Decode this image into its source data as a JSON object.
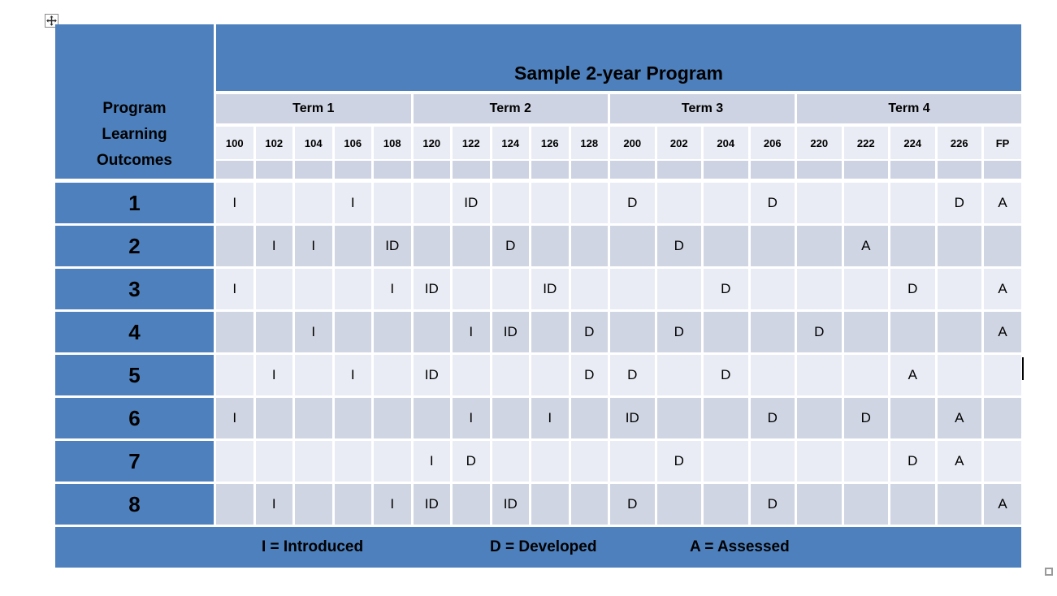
{
  "page": {
    "background": "#FFFFFF",
    "artifacts": {
      "move_handle": "table-move-handle",
      "resize_handle": "table-resize-handle",
      "text_cursor": "caret"
    }
  },
  "colors": {
    "header_blue": "#4D80BC",
    "band_lavender": "#CDD3E2",
    "row_light": "#E9ECF4",
    "row_dark": "#D0D5E3",
    "text": "#000000"
  },
  "table": {
    "corner_header": "Program\nLearning\nOutcomes",
    "title": "Sample 2-year Program",
    "terms": [
      {
        "label": "Term 1",
        "courses": [
          "100",
          "102",
          "104",
          "106",
          "108"
        ]
      },
      {
        "label": "Term 2",
        "courses": [
          "120",
          "122",
          "124",
          "126",
          "128"
        ]
      },
      {
        "label": "Term 3",
        "courses": [
          "200",
          "202",
          "204",
          "206"
        ]
      },
      {
        "label": "Term 4",
        "courses": [
          "220",
          "222",
          "224",
          "226",
          "FP"
        ]
      }
    ],
    "courses": [
      "100",
      "102",
      "104",
      "106",
      "108",
      "120",
      "122",
      "124",
      "126",
      "128",
      "200",
      "202",
      "204",
      "206",
      "220",
      "222",
      "224",
      "226",
      "FP"
    ],
    "rows": [
      {
        "outcome": "1",
        "cells": [
          "I",
          "",
          "",
          "I",
          "",
          "",
          "ID",
          "",
          "",
          "",
          "D",
          "",
          "",
          "D",
          "",
          "",
          "",
          "D",
          "A"
        ]
      },
      {
        "outcome": "2",
        "cells": [
          "",
          "I",
          "I",
          "",
          "ID",
          "",
          "",
          "D",
          "",
          "",
          "",
          "D",
          "",
          "",
          "",
          "A",
          "",
          "",
          ""
        ]
      },
      {
        "outcome": "3",
        "cells": [
          "I",
          "",
          "",
          "",
          "I",
          "ID",
          "",
          "",
          "ID",
          "",
          "",
          "",
          "D",
          "",
          "",
          "",
          "D",
          "",
          "A"
        ]
      },
      {
        "outcome": "4",
        "cells": [
          "",
          "",
          "I",
          "",
          "",
          "",
          "I",
          "ID",
          "",
          "D",
          "",
          "D",
          "",
          "",
          "D",
          "",
          "",
          "",
          "A"
        ]
      },
      {
        "outcome": "5",
        "cells": [
          "",
          "I",
          "",
          "I",
          "",
          "ID",
          "",
          "",
          "",
          "D",
          "D",
          "",
          "D",
          "",
          "",
          "",
          "A",
          "",
          ""
        ]
      },
      {
        "outcome": "6",
        "cells": [
          "I",
          "",
          "",
          "",
          "",
          "",
          "I",
          "",
          "I",
          "",
          "ID",
          "",
          "",
          "D",
          "",
          "D",
          "",
          "A",
          ""
        ]
      },
      {
        "outcome": "7",
        "cells": [
          "",
          "",
          "",
          "",
          "",
          "I",
          "D",
          "",
          "",
          "",
          "",
          "D",
          "",
          "",
          "",
          "",
          "D",
          "A",
          ""
        ]
      },
      {
        "outcome": "8",
        "cells": [
          "",
          "I",
          "",
          "",
          "I",
          "ID",
          "",
          "ID",
          "",
          "",
          "D",
          "",
          "",
          "D",
          "",
          "",
          "",
          "",
          "A"
        ]
      }
    ],
    "legend": [
      "I = Introduced",
      "D = Developed",
      "A = Assessed"
    ]
  }
}
